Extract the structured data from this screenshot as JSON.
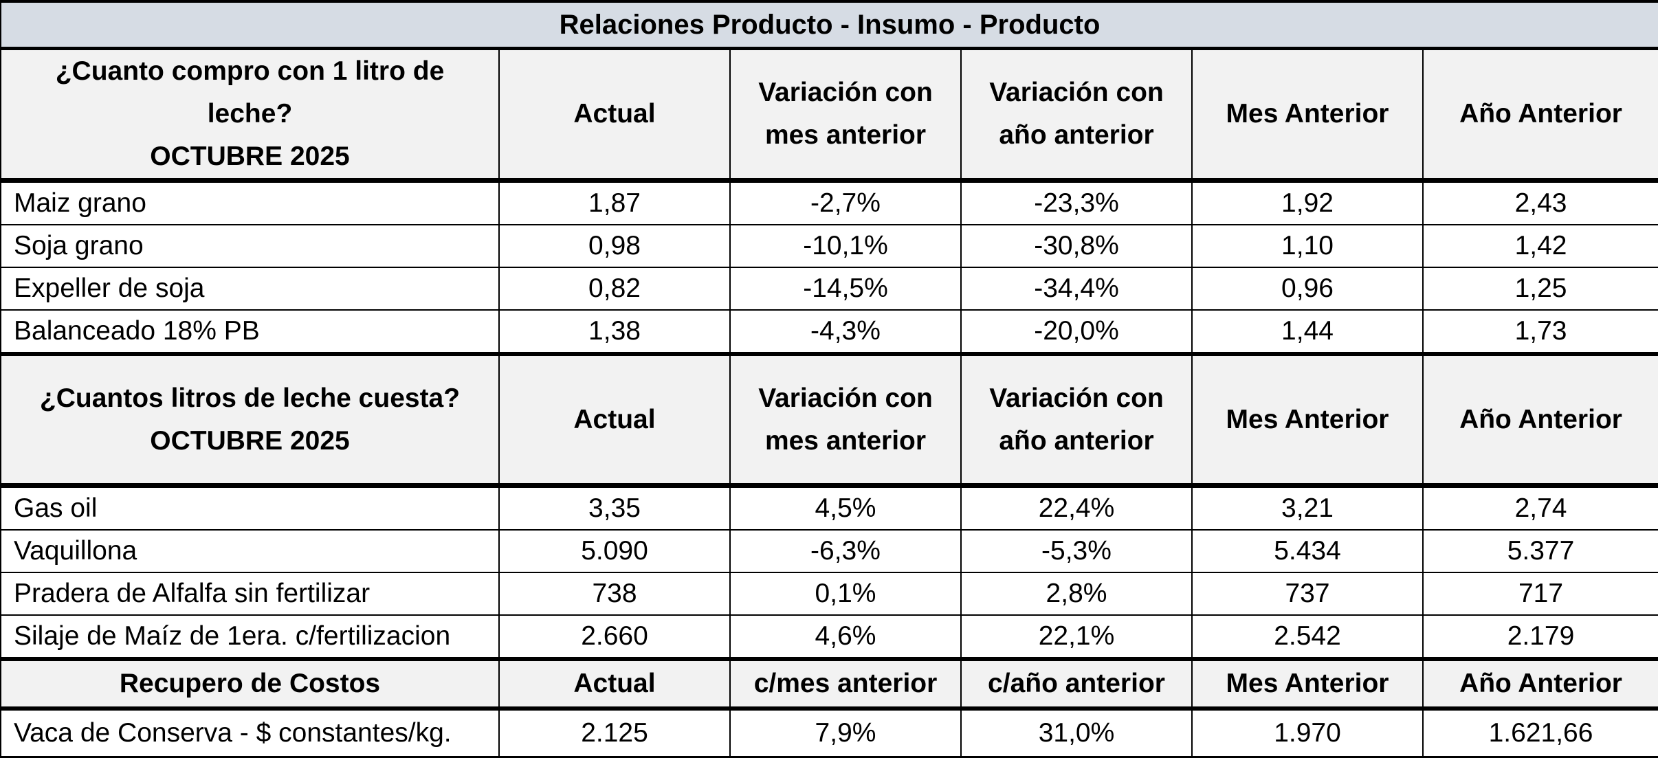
{
  "title": "Relaciones Producto - Insumo - Producto",
  "section1": {
    "header": {
      "line1": "¿Cuanto compro con 1 litro de",
      "line2": "leche?",
      "line3": "OCTUBRE 2025",
      "actual": "Actual",
      "var_mes_1": "Variación con",
      "var_mes_2": "mes anterior",
      "var_anio_1": "Variación con",
      "var_anio_2": "año anterior",
      "mes_anterior": "Mes Anterior",
      "anio_anterior": "Año Anterior"
    },
    "rows": [
      {
        "label": "Maiz grano",
        "actual": "1,87",
        "var_mes": "-2,7%",
        "var_anio": "-23,3%",
        "mes_ant": "1,92",
        "anio_ant": "2,43"
      },
      {
        "label": "Soja grano",
        "actual": "0,98",
        "var_mes": "-10,1%",
        "var_anio": "-30,8%",
        "mes_ant": "1,10",
        "anio_ant": "1,42"
      },
      {
        "label": "Expeller de soja",
        "actual": "0,82",
        "var_mes": "-14,5%",
        "var_anio": "-34,4%",
        "mes_ant": "0,96",
        "anio_ant": "1,25"
      },
      {
        "label": "Balanceado 18% PB",
        "actual": "1,38",
        "var_mes": "-4,3%",
        "var_anio": "-20,0%",
        "mes_ant": "1,44",
        "anio_ant": "1,73"
      }
    ]
  },
  "section2": {
    "header": {
      "line1": "¿Cuantos litros de leche cuesta?",
      "line2": "OCTUBRE 2025",
      "actual": "Actual",
      "var_mes_1": "Variación con",
      "var_mes_2": "mes anterior",
      "var_anio_1": "Variación con",
      "var_anio_2": "año anterior",
      "mes_anterior": "Mes Anterior",
      "anio_anterior": "Año Anterior"
    },
    "rows": [
      {
        "label": "Gas oil",
        "actual": "3,35",
        "var_mes": "4,5%",
        "var_anio": "22,4%",
        "mes_ant": "3,21",
        "anio_ant": "2,74"
      },
      {
        "label": "Vaquillona",
        "actual": "5.090",
        "var_mes": "-6,3%",
        "var_anio": "-5,3%",
        "mes_ant": "5.434",
        "anio_ant": "5.377"
      },
      {
        "label": "Pradera de Alfalfa sin fertilizar",
        "actual": "738",
        "var_mes": "0,1%",
        "var_anio": "2,8%",
        "mes_ant": "737",
        "anio_ant": "717"
      },
      {
        "label": "Silaje de Maíz de 1era. c/fertilizacion",
        "actual": "2.660",
        "var_mes": "4,6%",
        "var_anio": "22,1%",
        "mes_ant": "2.542",
        "anio_ant": "2.179"
      }
    ]
  },
  "section3": {
    "header": {
      "label": "Recupero de Costos",
      "actual": "Actual",
      "var_mes": "c/mes anterior",
      "var_anio": "c/año anterior",
      "mes_anterior": "Mes Anterior",
      "anio_anterior": "Año Anterior"
    },
    "rows": [
      {
        "label": "Vaca de Conserva - $ constantes/kg.",
        "actual": "2.125",
        "var_mes": "7,9%",
        "var_anio": "31,0%",
        "mes_ant": "1.970",
        "anio_ant": "1.621,66"
      }
    ]
  }
}
